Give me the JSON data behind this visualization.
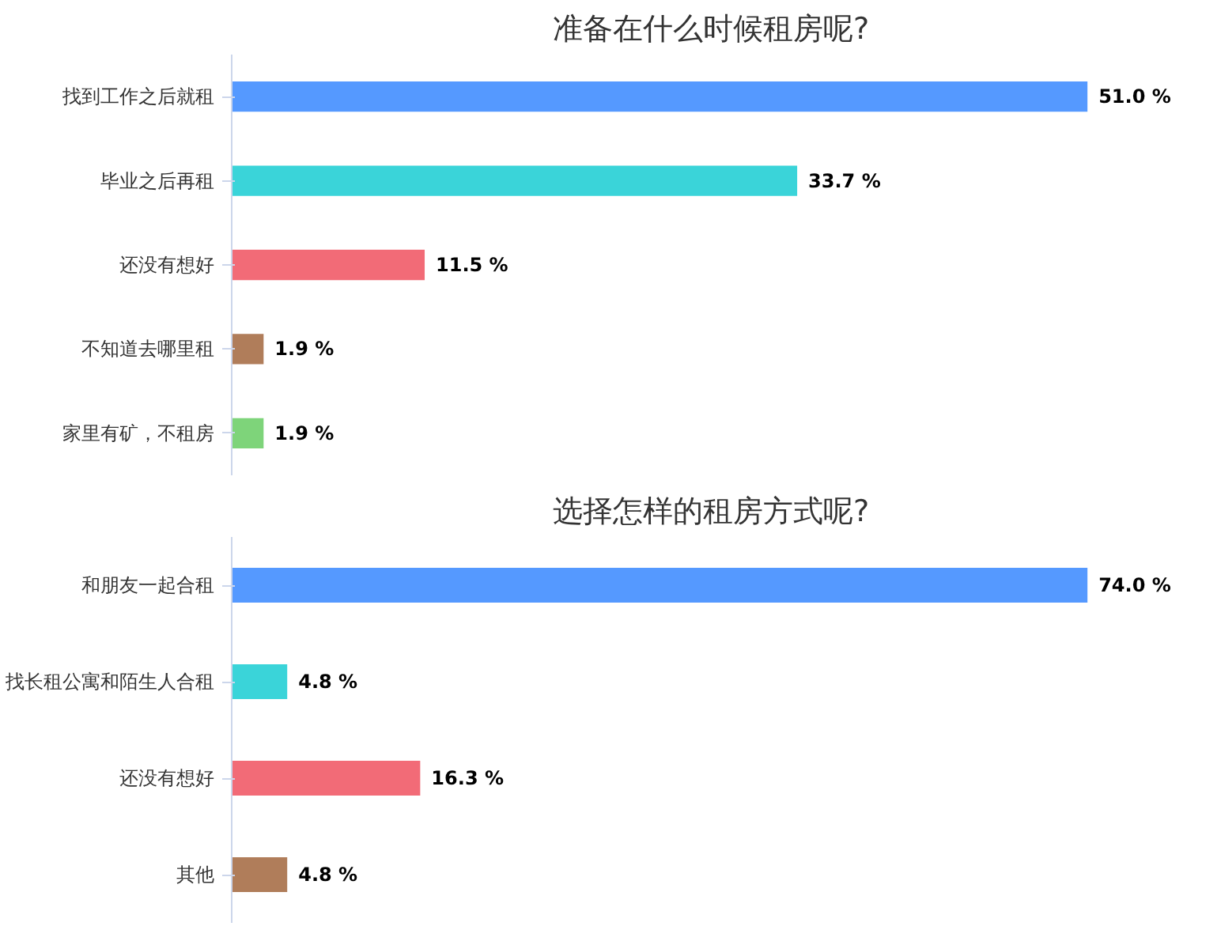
{
  "chart_data": [
    {
      "type": "bar",
      "orientation": "horizontal",
      "title": "准备在什么时候租房呢?",
      "categories": [
        "找到工作之后就租",
        "毕业之后再租",
        "还没有想好",
        "不知道去哪里租",
        "家里有矿，不租房"
      ],
      "values": [
        51.0,
        33.7,
        11.5,
        1.9,
        1.9
      ],
      "colors": [
        "#5599ff",
        "#3ad4d9",
        "#f26b77",
        "#b07d5a",
        "#7ed47a"
      ],
      "value_labels": [
        "51.0 %",
        "33.7 %",
        "11.5 %",
        "1.9 %",
        "1.9 %"
      ]
    },
    {
      "type": "bar",
      "orientation": "horizontal",
      "title": "选择怎样的租房方式呢?",
      "categories": [
        "和朋友一起合租",
        "找长租公寓和陌生人合租",
        "还没有想好",
        "其他"
      ],
      "values": [
        74.0,
        4.8,
        16.3,
        4.8
      ],
      "colors": [
        "#5599ff",
        "#3ad4d9",
        "#f26b77",
        "#b07d5a"
      ],
      "value_labels": [
        "74.0 %",
        "4.8 %",
        "16.3 %",
        "4.8 %"
      ]
    }
  ]
}
